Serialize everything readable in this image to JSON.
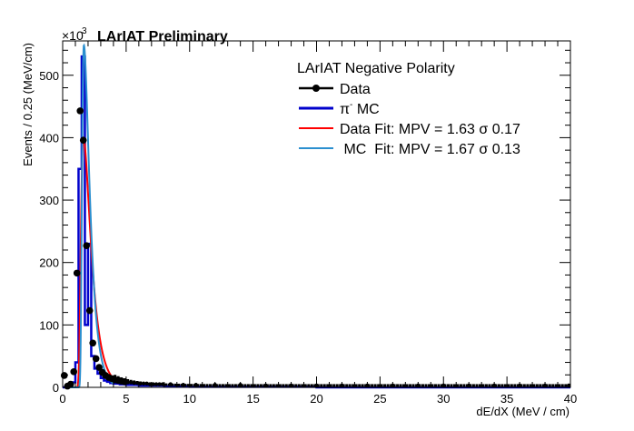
{
  "chart_data": {
    "type": "line",
    "header": "LArIAT Preliminary",
    "exponent_prefix": "×10",
    "exponent_power": "3",
    "xlabel": "dE/dX (MeV / cm)",
    "ylabel": "Events / 0.25 (MeV/cm)",
    "xlim": [
      0,
      40
    ],
    "ylim": [
      0,
      555
    ],
    "y_scale_factor": 1000,
    "x_ticks": [
      "0",
      "5",
      "10",
      "15",
      "20",
      "25",
      "30",
      "35",
      "40"
    ],
    "y_ticks": [
      "0",
      "100",
      "200",
      "300",
      "400",
      "500"
    ],
    "grid": false,
    "legend": {
      "position": "top-right",
      "title": "LArIAT Negative Polarity",
      "entries": [
        {
          "label": "Data",
          "color": "#000000",
          "style": "line-marker"
        },
        {
          "label_main": "π",
          "label_sup": "-",
          "label_rest": " MC",
          "color": "#0000cc",
          "style": "line"
        },
        {
          "label": "Data Fit: MPV = 1.63 σ 0.17",
          "color": "#ff0000",
          "style": "line"
        },
        {
          "label": " MC  Fit: MPV = 1.67 σ 0.13",
          "color": "#2b8fcf",
          "style": "line"
        }
      ]
    },
    "series": [
      {
        "name": "Data",
        "kind": "points",
        "color": "#000000",
        "x": [
          0.125,
          0.375,
          0.625,
          0.875,
          1.125,
          1.375,
          1.625,
          1.875,
          2.125,
          2.375,
          2.625,
          2.875,
          3.125,
          3.375,
          3.625,
          3.875,
          4.125,
          4.375,
          4.625,
          4.875,
          5.125,
          5.375,
          5.625,
          5.875,
          6.125,
          6.375,
          6.625,
          6.875,
          7.125,
          7.375,
          7.625,
          7.875,
          8.5,
          9.5,
          10.5,
          12,
          14,
          16,
          18,
          20,
          22,
          24,
          26,
          28,
          30,
          32,
          34,
          36,
          38,
          39.875
        ],
        "y": [
          19,
          2,
          5,
          25,
          183,
          443,
          396,
          227,
          123,
          71,
          46,
          32,
          24,
          19,
          16,
          14,
          12,
          11,
          10,
          9,
          8,
          8,
          7,
          7,
          6,
          6,
          6,
          5,
          5,
          5,
          5,
          5,
          5,
          4,
          4,
          4,
          4,
          3,
          3,
          3,
          3,
          3,
          3,
          3,
          3,
          3,
          3,
          3,
          3,
          3
        ]
      },
      {
        "name": "π- MC",
        "kind": "histogram",
        "color": "#0000cc",
        "bin_edges": [
          0,
          0.25,
          0.5,
          0.75,
          1.0,
          1.25,
          1.5,
          1.75,
          2.0,
          2.25,
          2.5,
          2.75,
          3.0,
          3.25,
          3.5,
          3.75,
          4.0,
          4.5,
          5.0,
          6.0,
          8.0,
          10.0,
          20.0,
          40.0
        ],
        "values": [
          0,
          0,
          2,
          8,
          40,
          350,
          530,
          100,
          230,
          50,
          30,
          22,
          15,
          11,
          9,
          7,
          6,
          5,
          4,
          3,
          2,
          1,
          0
        ]
      },
      {
        "name": "Data Fit",
        "kind": "curve",
        "color": "#ff0000",
        "mpv": 1.63,
        "sigma": 0.17,
        "amplitude": 400,
        "tail": 0.22
      },
      {
        "name": "MC Fit",
        "kind": "curve",
        "color": "#2b8fcf",
        "mpv": 1.67,
        "sigma": 0.13,
        "amplitude": 548,
        "tail": 0.2
      }
    ]
  }
}
